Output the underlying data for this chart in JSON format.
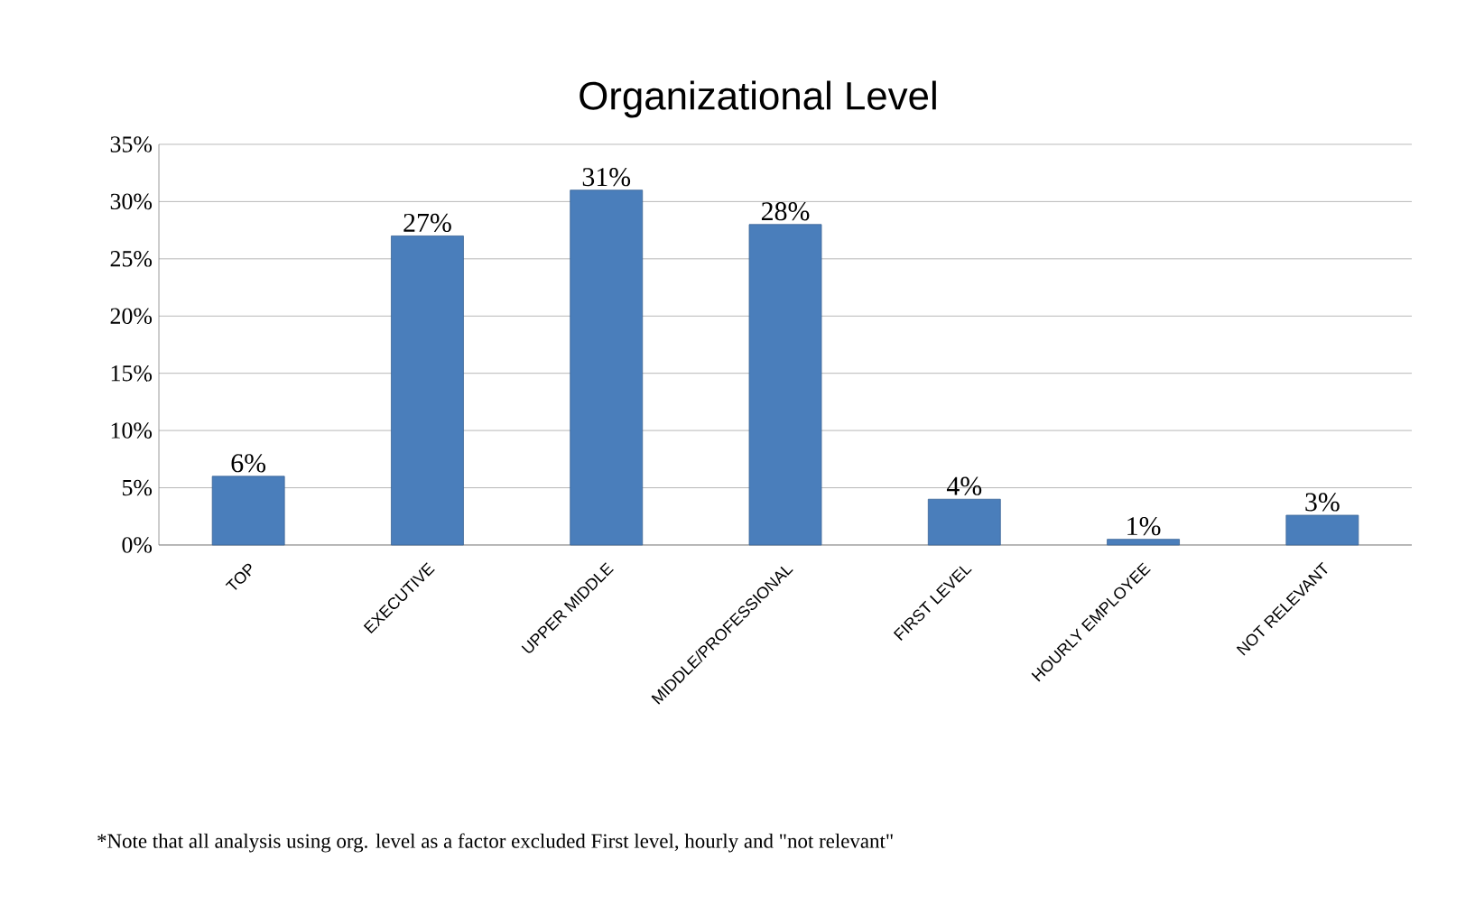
{
  "chart_data": {
    "type": "bar",
    "title": "Organizational Level",
    "categories": [
      "TOP",
      "EXECUTIVE",
      "UPPER MIDDLE",
      "MIDDLE/PROFESSIONAL",
      "FIRST LEVEL",
      "HOURLY EMPLOYEE",
      "NOT RELEVANT"
    ],
    "values": [
      6,
      27,
      31,
      28,
      4,
      0.5,
      2.6
    ],
    "value_labels": [
      "6%",
      "27%",
      "31%",
      "28%",
      "4%",
      "1%",
      "3%"
    ],
    "color": "#4a7ebb",
    "ylim": [
      0,
      35
    ],
    "yticks": [
      {
        "value": 0,
        "label": "0%"
      },
      {
        "value": 5,
        "label": "5%"
      },
      {
        "value": 10,
        "label": "10%"
      },
      {
        "value": 15,
        "label": "15%"
      },
      {
        "value": 20,
        "label": "20%"
      },
      {
        "value": 25,
        "label": "25%"
      },
      {
        "value": 30,
        "label": "30%"
      },
      {
        "value": 35,
        "label": "35%"
      }
    ],
    "grid": "y",
    "annotations": [
      "*Note that all analysis using org. level as a factor excluded First level, hourly and \"not relevant\""
    ]
  }
}
